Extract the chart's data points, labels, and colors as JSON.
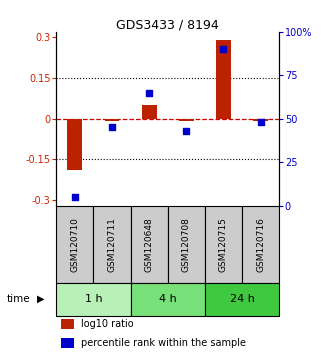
{
  "title": "GDS3433 / 8194",
  "samples": [
    "GSM120710",
    "GSM120711",
    "GSM120648",
    "GSM120708",
    "GSM120715",
    "GSM120716"
  ],
  "log10_ratio": [
    -0.19,
    -0.01,
    0.05,
    -0.01,
    0.29,
    -0.01
  ],
  "percentile_rank": [
    5,
    45,
    65,
    43,
    90,
    48
  ],
  "time_groups": [
    {
      "label": "1 h",
      "start": 0,
      "end": 2,
      "color": "#b8f0b8"
    },
    {
      "label": "4 h",
      "start": 2,
      "end": 4,
      "color": "#78e078"
    },
    {
      "label": "24 h",
      "start": 4,
      "end": 6,
      "color": "#40c840"
    }
  ],
  "ylim_left": [
    -0.32,
    0.32
  ],
  "ylim_right": [
    0,
    100
  ],
  "yticks_left": [
    -0.3,
    -0.15,
    0,
    0.15,
    0.3
  ],
  "ytick_labels_left": [
    "-0.3",
    "-0.15",
    "0",
    "0.15",
    "0.3"
  ],
  "yticks_right": [
    0,
    25,
    50,
    75,
    100
  ],
  "ytick_labels_right": [
    "0",
    "25",
    "50",
    "75",
    "100%"
  ],
  "bar_color": "#bb2200",
  "dot_color": "#0000cc",
  "zero_line_color": "#cc0000",
  "dot_line_color": "#cc0000",
  "grid_color": "#000000",
  "bg_color": "#ffffff",
  "sample_box_color": "#cccccc",
  "time_label": "time",
  "legend_bar_label": "log10 ratio",
  "legend_dot_label": "percentile rank within the sample"
}
